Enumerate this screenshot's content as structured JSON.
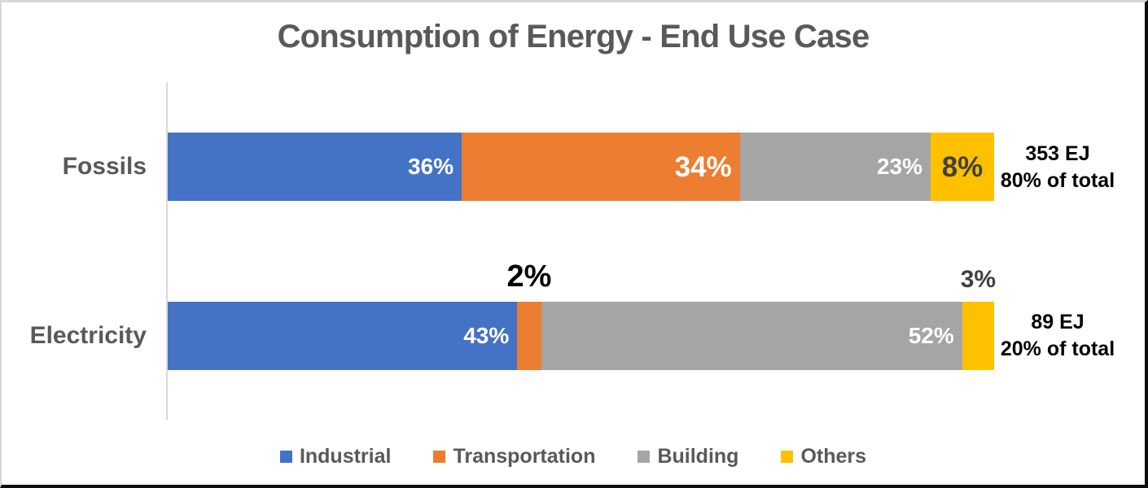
{
  "chart_data": {
    "type": "bar",
    "orientation": "horizontal",
    "stacked": true,
    "units": "percent",
    "title": "Consumption of Energy - End Use Case",
    "categories": [
      "Fossils",
      "Electricity"
    ],
    "series": [
      {
        "name": "Industrial",
        "color": "#4472C4",
        "values": [
          36,
          43
        ]
      },
      {
        "name": "Transportation",
        "color": "#ED7D31",
        "values": [
          34,
          2
        ]
      },
      {
        "name": "Building",
        "color": "#A5A5A5",
        "values": [
          23,
          52
        ]
      },
      {
        "name": "Others",
        "color": "#FFC000",
        "values": [
          8,
          3
        ]
      }
    ],
    "legend_position": "bottom",
    "axis": {
      "line_color": "#D9D9D9"
    },
    "rows": [
      {
        "category": "Fossils",
        "total": {
          "line1": "353 EJ",
          "line2": "80% of total"
        },
        "segments": [
          {
            "series": "Industrial",
            "pct": 36,
            "label": "36%",
            "placement": "inside-right",
            "theme": "light",
            "size": "md"
          },
          {
            "series": "Transportation",
            "pct": 34,
            "label": "34%",
            "placement": "inside-right",
            "theme": "light",
            "size": "lg"
          },
          {
            "series": "Building",
            "pct": 23,
            "label": "23%",
            "placement": "inside-right",
            "theme": "light",
            "size": "md"
          },
          {
            "series": "Others",
            "pct": 8,
            "label": "8%",
            "placement": "inside-center",
            "theme": "dark",
            "size": "lg"
          }
        ]
      },
      {
        "category": "Electricity",
        "total": {
          "line1": "89 EJ",
          "line2": "20% of total"
        },
        "segments": [
          {
            "series": "Industrial",
            "pct": 43,
            "label": "43%",
            "placement": "inside-right",
            "theme": "light",
            "size": "md"
          },
          {
            "series": "Transportation",
            "pct": 2,
            "label": "2%",
            "placement": "above",
            "theme": "black",
            "size": "xl"
          },
          {
            "series": "Building",
            "pct": 52,
            "label": "52%",
            "placement": "inside-right",
            "theme": "light",
            "size": "md"
          },
          {
            "series": "Others",
            "pct": 3,
            "label": "3%",
            "placement": "above",
            "theme": "dark",
            "size": "ml"
          }
        ]
      }
    ],
    "text_colors": {
      "title": "#595959",
      "category_labels": "#595959",
      "legend": "#595959",
      "annotations": "#000000",
      "dark_segment_label": "#404040",
      "light_segment_label": "#FFFFFF"
    }
  }
}
